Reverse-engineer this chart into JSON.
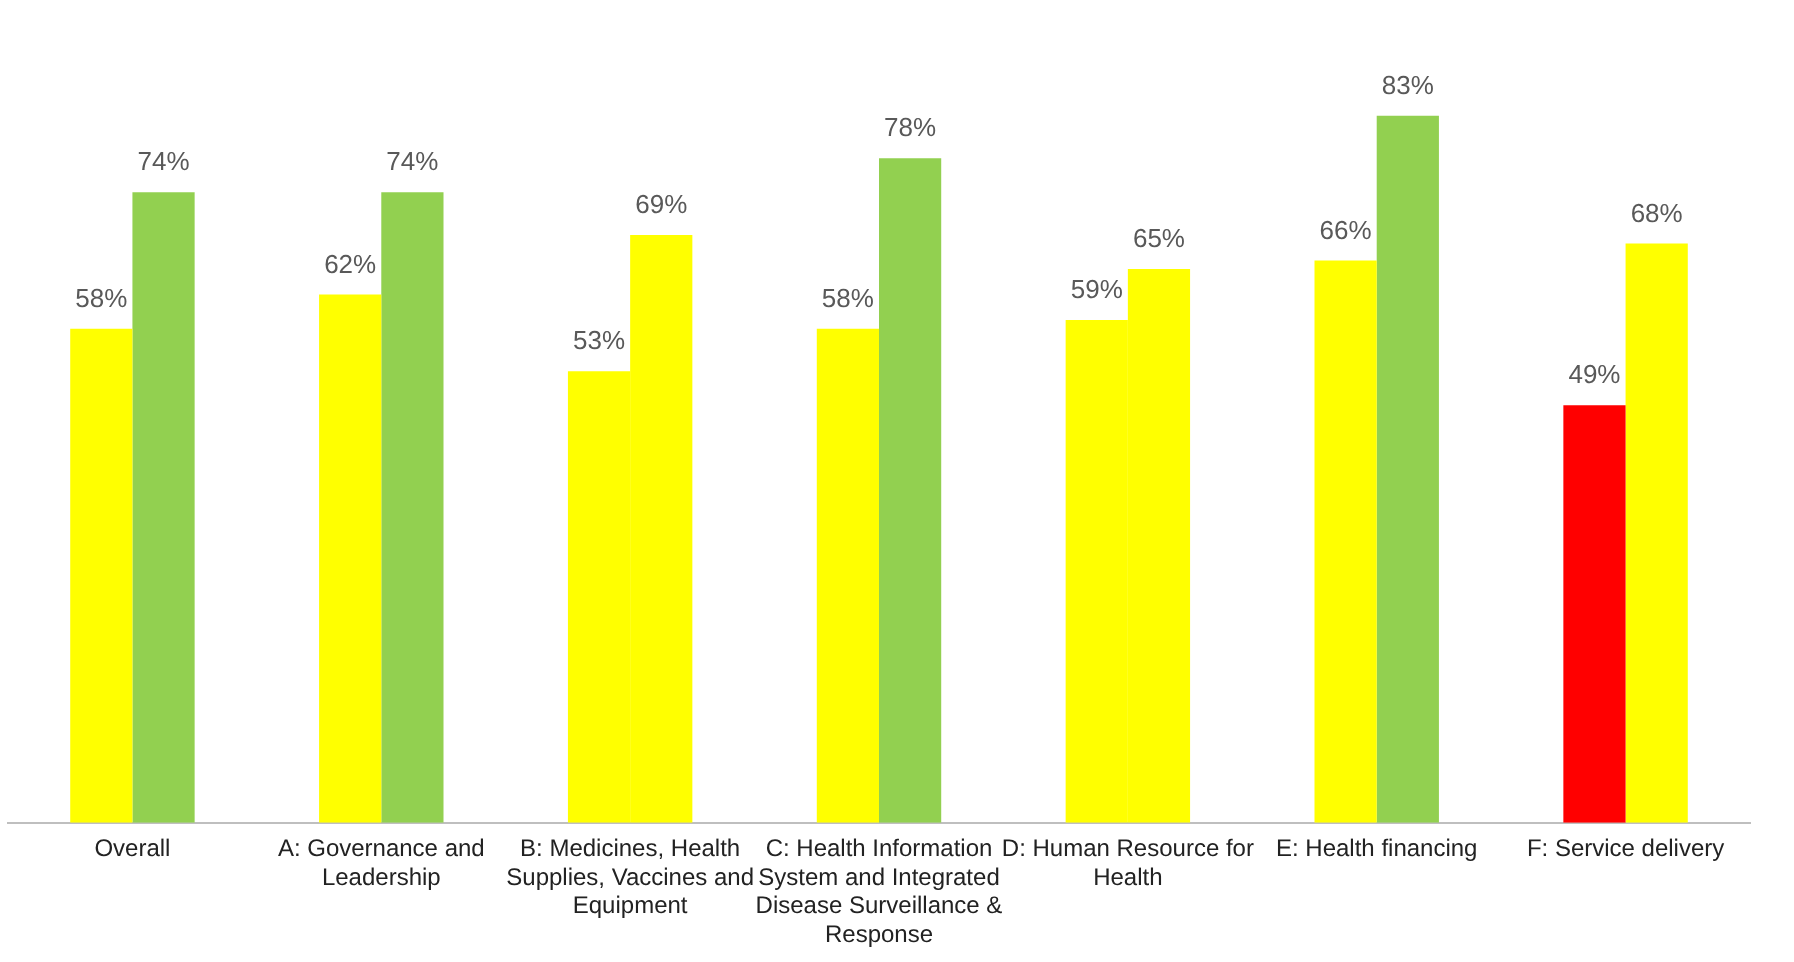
{
  "chart_data": {
    "type": "bar",
    "categories": [
      "Overall",
      "A: Governance and Leadership",
      "B: Medicines, Health Supplies, Vaccines and Equipment",
      "C: Health Information System and Integrated Disease Surveillance & Response",
      "D: Human Resource for Health",
      "E: Health financing",
      "F: Service delivery"
    ],
    "series": [
      {
        "colors": [
          "#ffff00",
          "#ffff00",
          "#ffff00",
          "#ffff00",
          "#ffff00",
          "#ffff00",
          "#ff0000"
        ],
        "values": [
          58,
          62,
          53,
          58,
          59,
          66,
          49
        ],
        "value_labels": [
          "58%",
          "62%",
          "53%",
          "58%",
          "59%",
          "66%",
          "49%"
        ]
      },
      {
        "colors": [
          "#92d050",
          "#92d050",
          "#ffff00",
          "#92d050",
          "#ffff00",
          "#92d050",
          "#ffff00"
        ],
        "values": [
          74,
          74,
          69,
          78,
          65,
          83,
          68
        ],
        "value_labels": [
          "74%",
          "74%",
          "69%",
          "78%",
          "65%",
          "83%",
          "68%"
        ]
      }
    ],
    "grid": false,
    "legend": false,
    "tick_labels": "x"
  }
}
